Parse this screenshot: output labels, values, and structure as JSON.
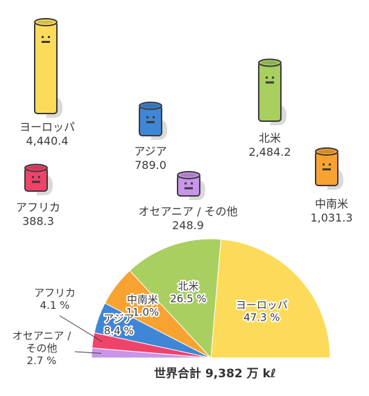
{
  "chart_data": {
    "type": "pie",
    "slices": [
      {
        "name": "ヨーロッパ",
        "value": 4440.4,
        "percent": 47.3,
        "value_label": "4,440.4",
        "pct_label": "47.3 %",
        "color": "#fddb5a"
      },
      {
        "name": "北米",
        "value": 2484.2,
        "percent": 26.5,
        "value_label": "2,484.2",
        "pct_label": "26.5 %",
        "color": "#a8cf60"
      },
      {
        "name": "中南米",
        "value": 1031.3,
        "percent": 11.0,
        "value_label": "1,031.3",
        "pct_label": "11.0%",
        "color": "#f8a331"
      },
      {
        "name": "アジア",
        "value": 789.0,
        "percent": 8.4,
        "value_label": "789.0",
        "pct_label": "8.4 %",
        "color": "#3f86d6"
      },
      {
        "name": "アフリカ",
        "value": 388.3,
        "percent": 4.1,
        "value_label": "388.3",
        "pct_label": "4.1 %",
        "color": "#f0436a"
      },
      {
        "name": "オセアニア / その他",
        "value": 248.9,
        "percent": 2.7,
        "value_label": "248.9",
        "pct_label": "2.7 %",
        "color": "#c895ea",
        "pie_name_lines": [
          "オセアニア /",
          "その他"
        ]
      }
    ],
    "total_label": "世界合計 9,382 万 kℓ"
  }
}
